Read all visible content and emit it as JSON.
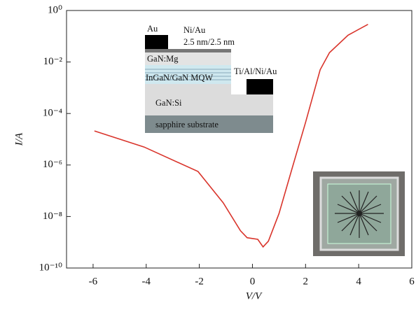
{
  "chart_data": {
    "type": "line",
    "log_y": true,
    "xlabel": "V/V",
    "ylabel": "I/A",
    "x": [
      -5.95,
      -4.08,
      -2.05,
      -1.1,
      -0.45,
      -0.2,
      0.2,
      0.4,
      0.6,
      1.0,
      1.5,
      2.0,
      2.55,
      2.9,
      3.6,
      4.35
    ],
    "series": [
      {
        "color": "#d9342b",
        "values": [
          2.1e-05,
          5e-06,
          5.6e-07,
          3.4e-08,
          2.8e-09,
          1.5e-09,
          1.3e-09,
          6.6e-10,
          1.1e-09,
          1.3e-08,
          7.8e-07,
          4.5e-05,
          0.005,
          0.023,
          0.11,
          0.29
        ]
      }
    ],
    "xlim": [
      -7,
      6
    ],
    "xticks": [
      -6,
      -4,
      -2,
      0,
      2,
      4,
      6
    ],
    "ylim": [
      1e-10,
      1
    ],
    "yticks": [
      {
        "value": 1e-10,
        "label": "10⁻¹⁰"
      },
      {
        "value": 1e-08,
        "label": "10⁻⁸"
      },
      {
        "value": 1e-06,
        "label": "10⁻⁶"
      },
      {
        "value": 0.0001,
        "label": "10⁻⁴"
      },
      {
        "value": 0.01,
        "label": "10⁻²"
      },
      {
        "value": 1,
        "label": "10⁰"
      }
    ],
    "inset_labels": [
      "Au",
      "Ni/Au",
      "2.5 nm/2.5 nm",
      "GaN:Mg",
      "InGaN/GaN MQW",
      "Ti/Al/Ni/Au",
      "GaN:Si",
      "sapphire substrate"
    ]
  }
}
